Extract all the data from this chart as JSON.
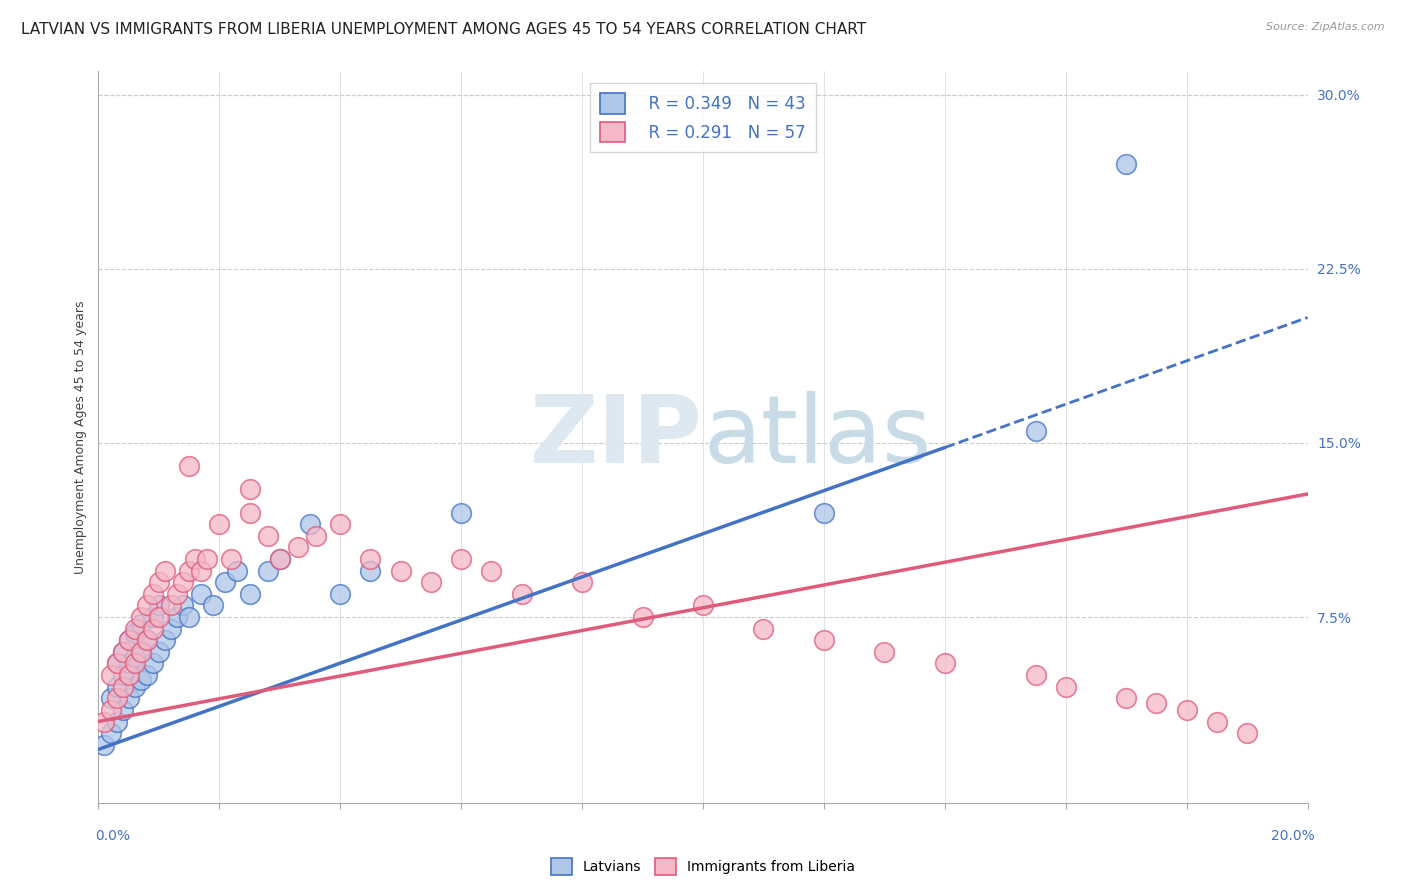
{
  "title": "LATVIAN VS IMMIGRANTS FROM LIBERIA UNEMPLOYMENT AMONG AGES 45 TO 54 YEARS CORRELATION CHART",
  "source": "Source: ZipAtlas.com",
  "ylabel": "Unemployment Among Ages 45 to 54 years",
  "xlim": [
    0.0,
    0.2
  ],
  "ylim": [
    -0.005,
    0.31
  ],
  "watermark_zip": "ZIP",
  "watermark_atlas": "atlas",
  "legend_r1": "R = 0.349",
  "legend_n1": "N = 43",
  "legend_r2": "R = 0.291",
  "legend_n2": "N = 57",
  "color_blue_face": "#aec6e8",
  "color_blue_edge": "#4472c4",
  "color_pink_face": "#f4b8c8",
  "color_pink_edge": "#e05a7a",
  "trend_blue_x0": 0.0,
  "trend_blue_y0": 0.018,
  "trend_blue_x1": 0.14,
  "trend_blue_y1": 0.148,
  "trend_blue_dash_x1": 0.2,
  "trend_blue_dash_y1": 0.204,
  "trend_pink_x0": 0.0,
  "trend_pink_y0": 0.03,
  "trend_pink_x1": 0.2,
  "trend_pink_y1": 0.128,
  "latvian_x": [
    0.001,
    0.002,
    0.002,
    0.003,
    0.003,
    0.003,
    0.004,
    0.004,
    0.004,
    0.005,
    0.005,
    0.005,
    0.006,
    0.006,
    0.006,
    0.007,
    0.007,
    0.007,
    0.008,
    0.008,
    0.009,
    0.009,
    0.01,
    0.01,
    0.011,
    0.012,
    0.013,
    0.014,
    0.015,
    0.017,
    0.019,
    0.021,
    0.023,
    0.025,
    0.028,
    0.03,
    0.035,
    0.04,
    0.045,
    0.06,
    0.12,
    0.155,
    0.17
  ],
  "latvian_y": [
    0.02,
    0.025,
    0.04,
    0.03,
    0.045,
    0.055,
    0.035,
    0.05,
    0.06,
    0.04,
    0.055,
    0.065,
    0.045,
    0.058,
    0.068,
    0.048,
    0.06,
    0.072,
    0.05,
    0.065,
    0.055,
    0.075,
    0.06,
    0.08,
    0.065,
    0.07,
    0.075,
    0.08,
    0.075,
    0.085,
    0.08,
    0.09,
    0.095,
    0.085,
    0.095,
    0.1,
    0.115,
    0.085,
    0.095,
    0.12,
    0.12,
    0.155,
    0.27
  ],
  "liberia_x": [
    0.001,
    0.002,
    0.002,
    0.003,
    0.003,
    0.004,
    0.004,
    0.005,
    0.005,
    0.006,
    0.006,
    0.007,
    0.007,
    0.008,
    0.008,
    0.009,
    0.009,
    0.01,
    0.01,
    0.011,
    0.012,
    0.013,
    0.014,
    0.015,
    0.016,
    0.017,
    0.018,
    0.02,
    0.022,
    0.025,
    0.028,
    0.03,
    0.033,
    0.036,
    0.04,
    0.045,
    0.05,
    0.055,
    0.06,
    0.065,
    0.07,
    0.08,
    0.09,
    0.1,
    0.11,
    0.12,
    0.13,
    0.14,
    0.155,
    0.16,
    0.17,
    0.175,
    0.18,
    0.185,
    0.19,
    0.015,
    0.025
  ],
  "liberia_y": [
    0.03,
    0.035,
    0.05,
    0.04,
    0.055,
    0.045,
    0.06,
    0.05,
    0.065,
    0.055,
    0.07,
    0.06,
    0.075,
    0.065,
    0.08,
    0.07,
    0.085,
    0.075,
    0.09,
    0.095,
    0.08,
    0.085,
    0.09,
    0.095,
    0.1,
    0.095,
    0.1,
    0.115,
    0.1,
    0.12,
    0.11,
    0.1,
    0.105,
    0.11,
    0.115,
    0.1,
    0.095,
    0.09,
    0.1,
    0.095,
    0.085,
    0.09,
    0.075,
    0.08,
    0.07,
    0.065,
    0.06,
    0.055,
    0.05,
    0.045,
    0.04,
    0.038,
    0.035,
    0.03,
    0.025,
    0.14,
    0.13
  ],
  "grid_color": "#cccccc",
  "background_color": "#ffffff",
  "title_fontsize": 11,
  "axis_label_fontsize": 9,
  "tick_fontsize": 10,
  "legend_fontsize": 12
}
